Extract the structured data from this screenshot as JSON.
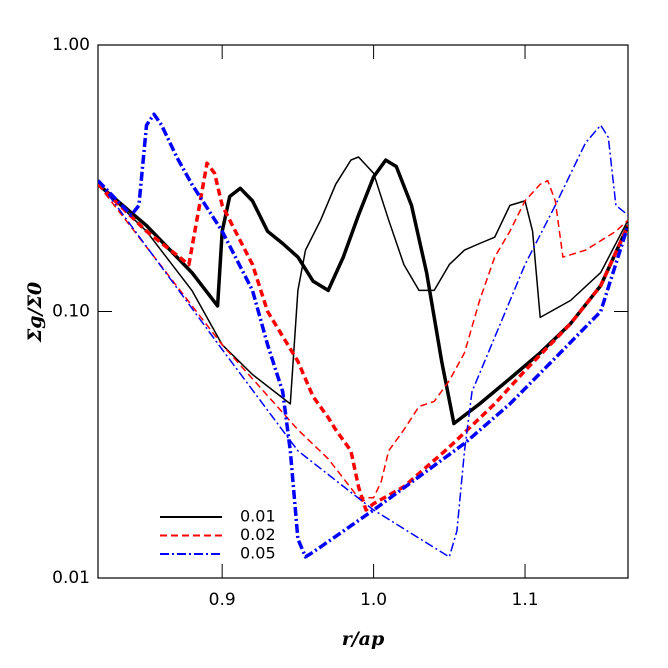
{
  "chart_data": {
    "type": "line",
    "xlabel": "r/ap",
    "ylabel": "Σg/Σ0",
    "xlim": [
      0.818,
      1.168
    ],
    "ylim": [
      0.01,
      1
    ],
    "log_y": true,
    "xticks": [
      0.9,
      {
        "value": 1,
        "label": "1.0"
      },
      1.1
    ],
    "yticks": [
      {
        "value": 0.01,
        "label": "0.01"
      },
      {
        "value": 0.1,
        "label": "0.10"
      },
      {
        "value": 1,
        "label": "1.00"
      }
    ],
    "legend": "lower left",
    "series": [
      {
        "name": "0.01",
        "color": "#000000",
        "dash": "solid",
        "linewidth": 3.5,
        "x": [
          0.818,
          0.85,
          0.88,
          0.897,
          0.9,
          0.905,
          0.912,
          0.92,
          0.93,
          0.94,
          0.95,
          0.96,
          0.97,
          0.98,
          0.99,
          1.0,
          1.008,
          1.015,
          1.025,
          1.035,
          1.045,
          1.053,
          1.07,
          1.09,
          1.11,
          1.13,
          1.15,
          1.168
        ],
        "values": [
          0.3,
          0.21,
          0.14,
          0.105,
          0.2,
          0.27,
          0.29,
          0.26,
          0.2,
          0.18,
          0.16,
          0.13,
          0.12,
          0.16,
          0.23,
          0.32,
          0.37,
          0.35,
          0.25,
          0.14,
          0.065,
          0.038,
          0.045,
          0.056,
          0.07,
          0.09,
          0.125,
          0.21
        ]
      },
      {
        "color": "#000000",
        "dash": "solid",
        "linewidth": 1.5,
        "x": [
          0.818,
          0.85,
          0.88,
          0.9,
          0.92,
          0.945,
          0.95,
          0.955,
          0.965,
          0.975,
          0.985,
          0.99,
          1.0,
          1.01,
          1.02,
          1.03,
          1.04,
          1.05,
          1.06,
          1.07,
          1.08,
          1.09,
          1.1,
          1.105,
          1.11,
          1.13,
          1.15,
          1.168
        ],
        "values": [
          0.3,
          0.2,
          0.12,
          0.075,
          0.058,
          0.045,
          0.12,
          0.17,
          0.22,
          0.3,
          0.37,
          0.38,
          0.33,
          0.22,
          0.15,
          0.12,
          0.12,
          0.15,
          0.17,
          0.18,
          0.19,
          0.25,
          0.26,
          0.2,
          0.095,
          0.11,
          0.14,
          0.22
        ]
      },
      {
        "name": "0.02",
        "color": "#ff0000",
        "dash": "dashed",
        "linewidth": 3.5,
        "x": [
          0.818,
          0.85,
          0.878,
          0.89,
          0.895,
          0.9,
          0.92,
          0.93,
          0.95,
          0.96,
          0.97,
          0.975,
          0.985,
          0.99,
          0.995,
          1.0,
          1.02,
          1.05,
          1.08,
          1.1,
          1.13,
          1.15,
          1.168
        ],
        "values": [
          0.3,
          0.2,
          0.15,
          0.36,
          0.33,
          0.25,
          0.15,
          0.1,
          0.065,
          0.048,
          0.04,
          0.036,
          0.03,
          0.022,
          0.018,
          0.019,
          0.022,
          0.031,
          0.045,
          0.06,
          0.09,
          0.125,
          0.21
        ]
      },
      {
        "color": "#ff0000",
        "dash": "dashed",
        "linewidth": 1.5,
        "x": [
          0.818,
          0.9,
          0.95,
          0.97,
          0.99,
          1.0,
          1.005,
          1.01,
          1.02,
          1.03,
          1.04,
          1.05,
          1.06,
          1.07,
          1.08,
          1.09,
          1.1,
          1.11,
          1.115,
          1.12,
          1.125,
          1.14,
          1.16,
          1.168
        ],
        "values": [
          0.3,
          0.075,
          0.036,
          0.028,
          0.02,
          0.02,
          0.023,
          0.03,
          0.036,
          0.044,
          0.046,
          0.055,
          0.07,
          0.11,
          0.16,
          0.2,
          0.26,
          0.3,
          0.31,
          0.26,
          0.16,
          0.17,
          0.2,
          0.22
        ]
      },
      {
        "name": "0.05",
        "color": "#0000ff",
        "dash": "dashdot",
        "linewidth": 3.5,
        "x": [
          0.818,
          0.84,
          0.845,
          0.85,
          0.855,
          0.86,
          0.87,
          0.88,
          0.9,
          0.92,
          0.93,
          0.94,
          0.945,
          0.95,
          0.955,
          0.96,
          0.98,
          1.0,
          1.03,
          1.06,
          1.09,
          1.12,
          1.15,
          1.168
        ],
        "values": [
          0.31,
          0.23,
          0.25,
          0.5,
          0.55,
          0.5,
          0.38,
          0.3,
          0.2,
          0.12,
          0.075,
          0.05,
          0.03,
          0.014,
          0.012,
          0.0125,
          0.015,
          0.018,
          0.024,
          0.032,
          0.045,
          0.067,
          0.1,
          0.21
        ]
      },
      {
        "color": "#0000ff",
        "dash": "dashdot",
        "linewidth": 1.5,
        "x": [
          0.818,
          0.9,
          0.95,
          1.0,
          1.04,
          1.05,
          1.055,
          1.06,
          1.065,
          1.08,
          1.1,
          1.12,
          1.14,
          1.15,
          1.155,
          1.16,
          1.168
        ],
        "values": [
          0.31,
          0.072,
          0.03,
          0.018,
          0.013,
          0.012,
          0.015,
          0.03,
          0.05,
          0.08,
          0.15,
          0.25,
          0.43,
          0.5,
          0.45,
          0.25,
          0.23
        ]
      }
    ]
  }
}
